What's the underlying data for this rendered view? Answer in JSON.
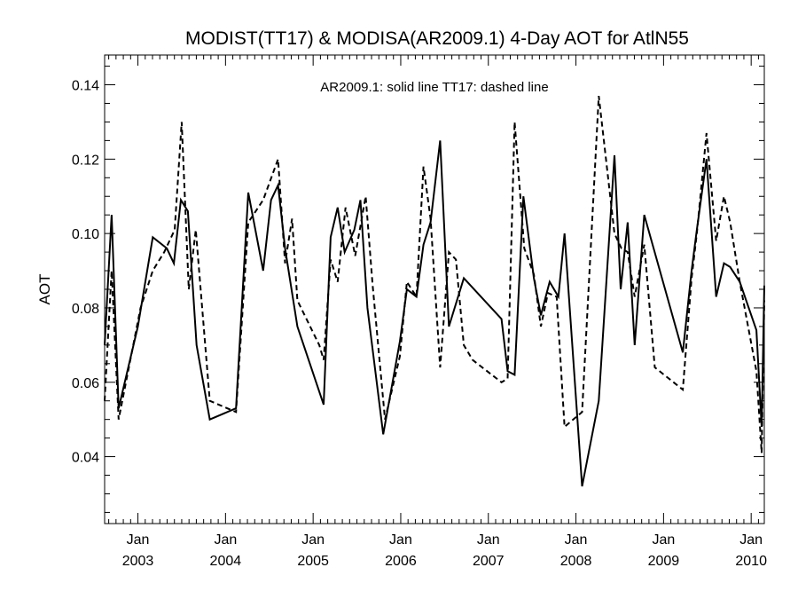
{
  "chart_data": {
    "type": "line",
    "title": "MODIST(TT17) & MODISA(AR2009.1) 4-Day AOT for AtlN55",
    "ylabel": "AOT",
    "annotation": "AR2009.1: solid line   TT17: dashed line",
    "xlim": [
      2002.62,
      2010.15
    ],
    "ylim": [
      0.022,
      0.148
    ],
    "y_ticks": [
      0.04,
      0.06,
      0.08,
      0.1,
      0.12,
      0.14
    ],
    "y_tick_labels": [
      "0.04",
      "0.06",
      "0.08",
      "0.10",
      "0.12",
      "0.14"
    ],
    "x_ticks": [
      {
        "x": 2003.0,
        "month": "Jan",
        "year": "2003"
      },
      {
        "x": 2004.0,
        "month": "Jan",
        "year": "2004"
      },
      {
        "x": 2005.0,
        "month": "Jan",
        "year": "2005"
      },
      {
        "x": 2006.0,
        "month": "Jan",
        "year": "2006"
      },
      {
        "x": 2007.0,
        "month": "Jan",
        "year": "2007"
      },
      {
        "x": 2008.0,
        "month": "Jan",
        "year": "2008"
      },
      {
        "x": 2009.0,
        "month": "Jan",
        "year": "2009"
      },
      {
        "x": 2010.0,
        "month": "Jan",
        "year": "2010"
      }
    ],
    "series": [
      {
        "name": "AR2009.1",
        "style": "solid",
        "color": "#000000",
        "x": [
          2002.62,
          2002.7,
          2002.78,
          2003.0,
          2003.17,
          2003.33,
          2003.41,
          2003.49,
          2003.57,
          2003.67,
          2003.82,
          2004.12,
          2004.26,
          2004.43,
          2004.52,
          2004.6,
          2004.68,
          2004.82,
          2005.12,
          2005.2,
          2005.28,
          2005.36,
          2005.47,
          2005.54,
          2005.62,
          2005.8,
          2005.99,
          2006.07,
          2006.18,
          2006.26,
          2006.34,
          2006.45,
          2006.55,
          2006.72,
          2007.15,
          2007.22,
          2007.3,
          2007.4,
          2007.52,
          2007.6,
          2007.7,
          2007.8,
          2007.87,
          2008.07,
          2008.26,
          2008.44,
          2008.51,
          2008.59,
          2008.67,
          2008.78,
          2009.22,
          2009.32,
          2009.38,
          2009.49,
          2009.6,
          2009.69,
          2009.76,
          2009.87,
          2010.06,
          2010.12,
          2010.15
        ],
        "y": [
          0.07,
          0.105,
          0.053,
          0.075,
          0.099,
          0.096,
          0.092,
          0.109,
          0.106,
          0.07,
          0.05,
          0.053,
          0.111,
          0.09,
          0.109,
          0.113,
          0.096,
          0.075,
          0.054,
          0.099,
          0.107,
          0.095,
          0.101,
          0.109,
          0.08,
          0.046,
          0.071,
          0.085,
          0.083,
          0.097,
          0.103,
          0.125,
          0.075,
          0.088,
          0.077,
          0.063,
          0.062,
          0.11,
          0.088,
          0.078,
          0.087,
          0.083,
          0.1,
          0.032,
          0.055,
          0.121,
          0.085,
          0.103,
          0.07,
          0.105,
          0.068,
          0.09,
          0.101,
          0.12,
          0.083,
          0.092,
          0.091,
          0.087,
          0.074,
          0.048,
          0.086
        ]
      },
      {
        "name": "TT17",
        "style": "dashed",
        "color": "#000000",
        "x": [
          2002.62,
          2002.7,
          2002.78,
          2003.03,
          2003.17,
          2003.3,
          2003.42,
          2003.5,
          2003.58,
          2003.66,
          2003.82,
          2004.12,
          2004.26,
          2004.43,
          2004.6,
          2004.68,
          2004.76,
          2004.82,
          2005.07,
          2005.12,
          2005.2,
          2005.28,
          2005.37,
          2005.48,
          2005.6,
          2005.68,
          2005.82,
          2005.99,
          2006.07,
          2006.18,
          2006.26,
          2006.34,
          2006.45,
          2006.55,
          2006.63,
          2006.72,
          2006.82,
          2007.15,
          2007.22,
          2007.3,
          2007.41,
          2007.52,
          2007.6,
          2007.68,
          2007.78,
          2007.87,
          2008.07,
          2008.26,
          2008.44,
          2008.52,
          2008.59,
          2008.67,
          2008.78,
          2008.9,
          2009.22,
          2009.32,
          2009.38,
          2009.49,
          2009.6,
          2009.69,
          2009.76,
          2009.87,
          2010.06,
          2010.12,
          2010.15
        ],
        "y": [
          0.055,
          0.09,
          0.05,
          0.08,
          0.09,
          0.095,
          0.101,
          0.13,
          0.085,
          0.101,
          0.055,
          0.052,
          0.103,
          0.109,
          0.12,
          0.092,
          0.104,
          0.082,
          0.07,
          0.066,
          0.093,
          0.087,
          0.107,
          0.094,
          0.11,
          0.086,
          0.05,
          0.067,
          0.087,
          0.083,
          0.118,
          0.104,
          0.064,
          0.095,
          0.093,
          0.07,
          0.066,
          0.06,
          0.061,
          0.13,
          0.096,
          0.089,
          0.075,
          0.084,
          0.083,
          0.048,
          0.052,
          0.137,
          0.1,
          0.096,
          0.095,
          0.083,
          0.097,
          0.064,
          0.058,
          0.088,
          0.1,
          0.127,
          0.098,
          0.11,
          0.103,
          0.087,
          0.063,
          0.041,
          0.082
        ]
      }
    ]
  }
}
